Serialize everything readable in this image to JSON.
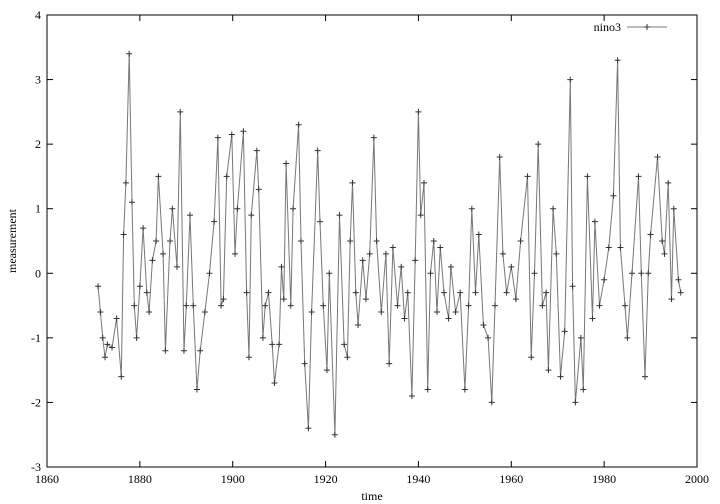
{
  "chart_data": {
    "type": "line",
    "xlabel": "time",
    "ylabel": "measurement",
    "xlim": [
      1860,
      2000
    ],
    "xticks": [
      1860,
      1880,
      1900,
      1920,
      1940,
      1960,
      1980,
      2000
    ],
    "ylim": [
      -3,
      4
    ],
    "yticks": [
      -3,
      -2,
      -1,
      0,
      1,
      2,
      3,
      4
    ],
    "legend": "top-right",
    "series": [
      {
        "name": "nino3",
        "color": "#777777",
        "x": [
          1871,
          1871.5,
          1872,
          1872.5,
          1873,
          1874,
          1875,
          1876,
          1876.5,
          1877,
          1877.7,
          1878.3,
          1878.8,
          1879.3,
          1880,
          1880.7,
          1881.5,
          1882,
          1882.7,
          1883.5,
          1884,
          1885,
          1885.5,
          1886.5,
          1887,
          1888,
          1888.7,
          1889.5,
          1890,
          1890.8,
          1891.5,
          1892.3,
          1893,
          1894,
          1895,
          1896,
          1896.8,
          1897.5,
          1898,
          1898.7,
          1899.8,
          1900.5,
          1901,
          1902.3,
          1903,
          1903.5,
          1904,
          1905.2,
          1905.6,
          1906.5,
          1907,
          1907.7,
          1908.5,
          1909,
          1910,
          1910.5,
          1911,
          1911.5,
          1912.5,
          1913,
          1914.2,
          1914.7,
          1915.5,
          1916.3,
          1917,
          1918.3,
          1918.8,
          1919.5,
          1920.3,
          1920.8,
          1922,
          1923,
          1924,
          1924.7,
          1925.3,
          1925.8,
          1926.5,
          1927,
          1928,
          1928.7,
          1929.5,
          1930.4,
          1931,
          1932,
          1933,
          1933.7,
          1934.5,
          1935.5,
          1936.3,
          1937,
          1937.7,
          1938.6,
          1939.3,
          1940,
          1940.5,
          1941.2,
          1942,
          1942.6,
          1943.3,
          1944,
          1944.7,
          1945.5,
          1946.5,
          1947,
          1948,
          1949,
          1950,
          1950.8,
          1951.5,
          1952.3,
          1953,
          1954,
          1955,
          1955.8,
          1956.5,
          1957.5,
          1958.2,
          1959,
          1960,
          1961,
          1962,
          1963.5,
          1964.3,
          1965,
          1965.8,
          1966.7,
          1967.5,
          1968,
          1969,
          1969.7,
          1970.6,
          1971.5,
          1972.7,
          1973.2,
          1973.8,
          1975,
          1975.5,
          1976.4,
          1977.5,
          1978,
          1979,
          1980,
          1981,
          1982,
          1982.9,
          1983.5,
          1984.5,
          1985,
          1986,
          1987.4,
          1988,
          1988.8,
          1989.5,
          1990,
          1991.5,
          1992.5,
          1993,
          1993.8,
          1994.5,
          1995,
          1996,
          1996.5
        ],
        "values": [
          -0.2,
          -0.6,
          -1.0,
          -1.3,
          -1.1,
          -1.15,
          -0.7,
          -1.6,
          0.6,
          1.4,
          3.4,
          1.1,
          -0.5,
          -1.0,
          -0.2,
          0.7,
          -0.3,
          -0.6,
          0.2,
          0.5,
          1.5,
          0.3,
          -1.2,
          0.5,
          1.0,
          0.1,
          2.5,
          -1.2,
          -0.5,
          0.9,
          -0.5,
          -1.8,
          -1.2,
          -0.6,
          0.0,
          0.8,
          2.1,
          -0.5,
          -0.4,
          1.5,
          2.15,
          0.3,
          1.0,
          2.2,
          -0.3,
          -1.3,
          0.9,
          1.9,
          1.3,
          -1.0,
          -0.5,
          -0.3,
          -1.1,
          -1.7,
          -1.1,
          0.1,
          -0.4,
          1.7,
          -0.5,
          1.0,
          2.3,
          0.5,
          -1.4,
          -2.4,
          -0.6,
          1.9,
          0.8,
          -0.5,
          -1.5,
          0.0,
          -2.5,
          0.9,
          -1.1,
          -1.3,
          0.5,
          1.4,
          -0.3,
          -0.8,
          0.2,
          -0.4,
          0.3,
          2.1,
          0.5,
          -0.6,
          0.3,
          -1.4,
          0.4,
          -0.5,
          0.1,
          -0.7,
          -0.3,
          -1.9,
          0.2,
          2.5,
          0.9,
          1.4,
          -1.8,
          0.0,
          0.5,
          -0.6,
          0.4,
          -0.3,
          -0.7,
          0.1,
          -0.6,
          -0.3,
          -1.8,
          -0.5,
          1.0,
          -0.3,
          0.6,
          -0.8,
          -1.0,
          -2.0,
          -0.5,
          1.8,
          0.3,
          -0.3,
          0.1,
          -0.4,
          0.5,
          1.5,
          -1.3,
          0.0,
          2.0,
          -0.5,
          -0.3,
          -1.5,
          1.0,
          0.3,
          -1.6,
          -0.9,
          3.0,
          -0.2,
          -2.0,
          -1.0,
          -1.8,
          1.5,
          -0.7,
          0.8,
          -0.5,
          -0.1,
          0.4,
          1.2,
          3.3,
          0.4,
          -0.5,
          -1.0,
          0.0,
          1.5,
          0.0,
          -1.6,
          0.0,
          0.6,
          1.8,
          0.5,
          0.3,
          1.4,
          -0.4,
          1.0,
          -0.1,
          -0.3
        ]
      }
    ]
  }
}
